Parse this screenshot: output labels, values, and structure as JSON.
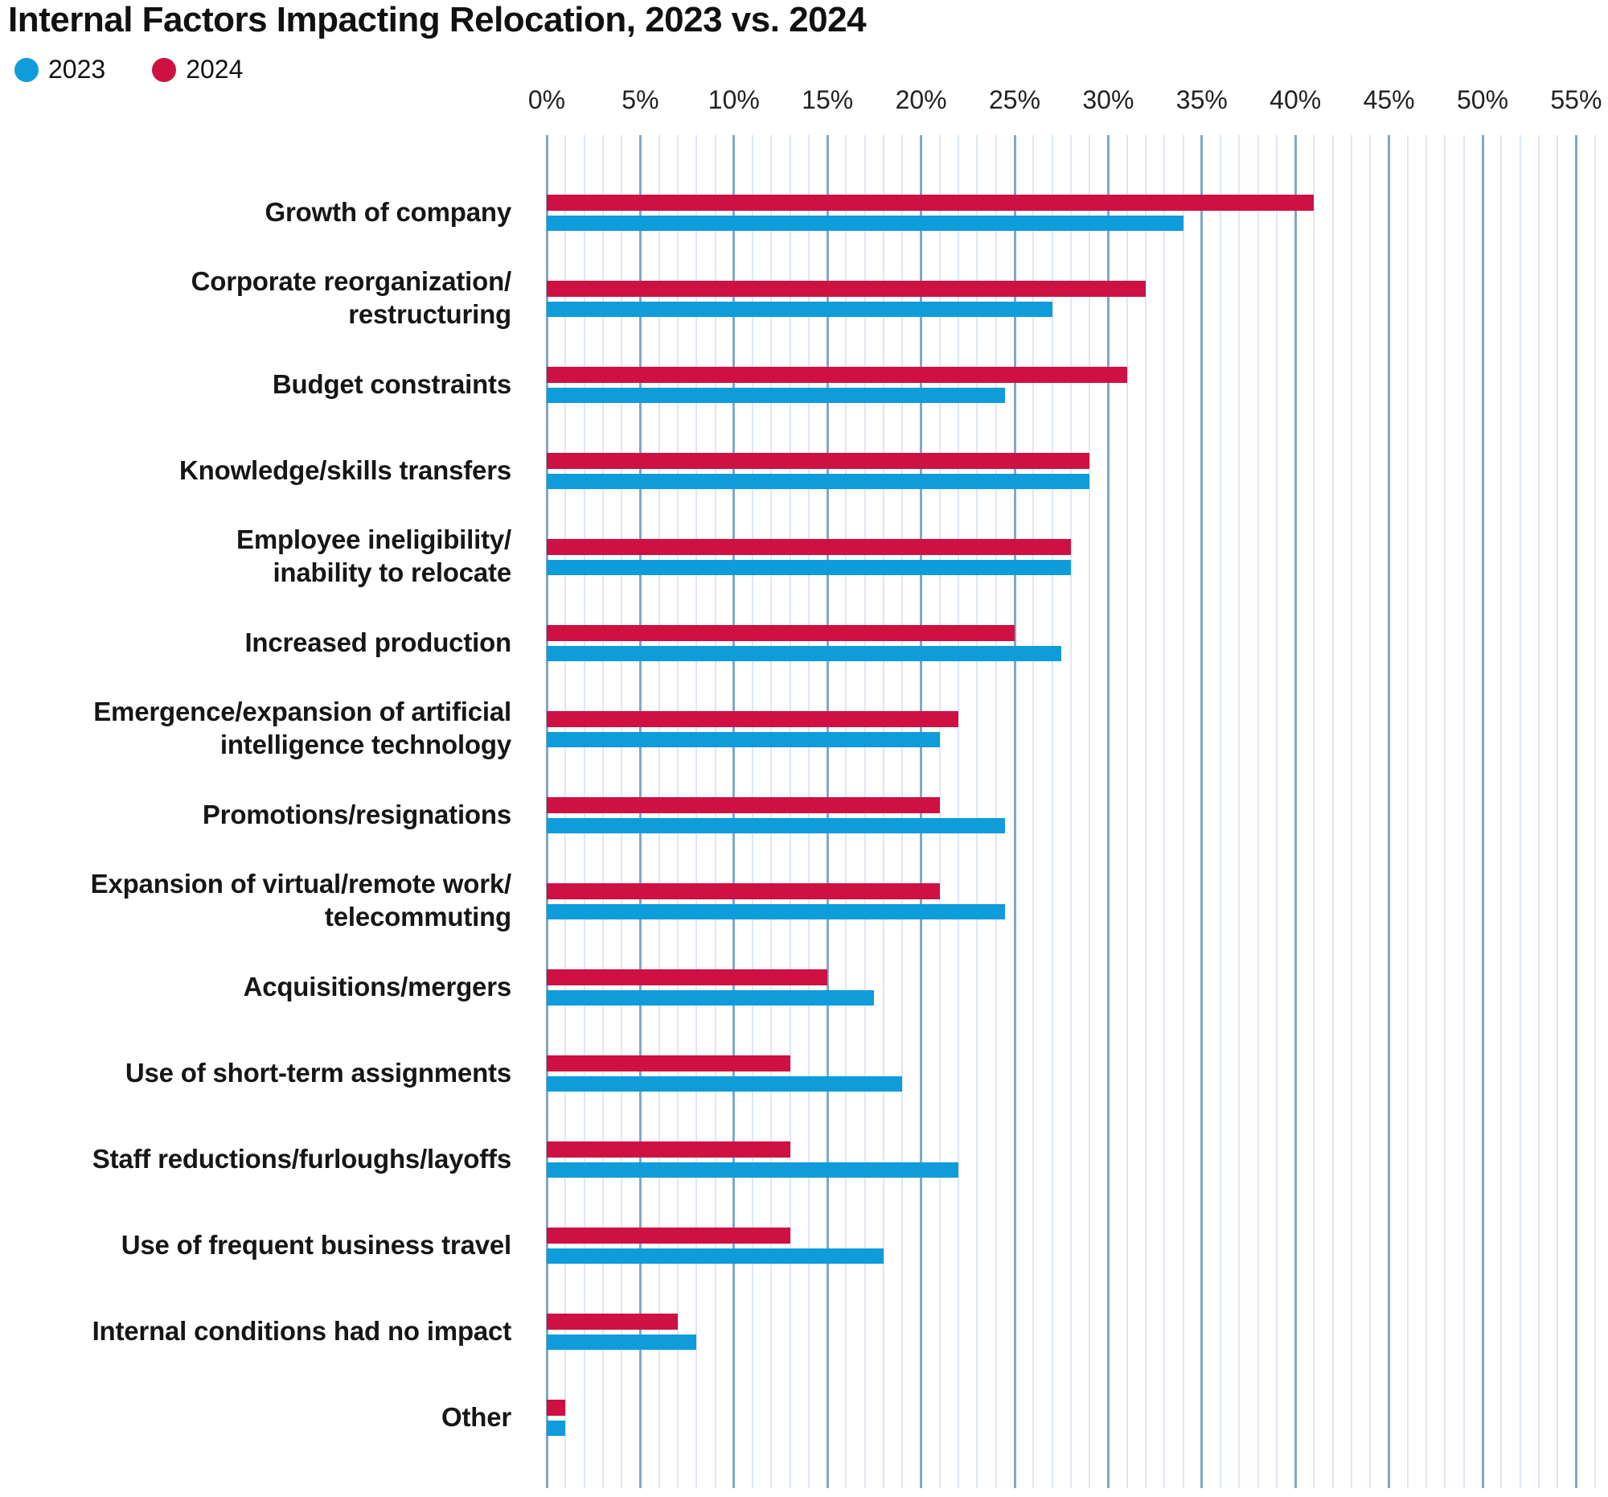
{
  "title": "Internal Factors Impacting Relocation, 2023 vs. 2024",
  "legend": {
    "position": "top-left",
    "items": [
      {
        "label": "2023",
        "color": "#0f9cda"
      },
      {
        "label": "2024",
        "color": "#ce1142"
      }
    ]
  },
  "colors": {
    "series_2023_blue": "#0f9cda",
    "series_2024_red": "#ce1142",
    "grid_minor": "#dde7f3",
    "grid_major": "#7fa8c9",
    "text": "#161616",
    "background": "#ffffff"
  },
  "chart_data": {
    "type": "bar",
    "orientation": "horizontal",
    "title": "Internal Factors Impacting Relocation, 2023 vs. 2024",
    "unit": "%",
    "xlabel": "",
    "ylabel": "",
    "xlim": [
      0,
      55
    ],
    "tick_step": 5,
    "x_tick_labels": [
      "0%",
      "5%",
      "10%",
      "15%",
      "20%",
      "25%",
      "30%",
      "35%",
      "40%",
      "45%",
      "50%",
      "55%"
    ],
    "grid": "vertical gridlines: minor every 1%, major every 5%",
    "legend_position": "top-left",
    "row_order_top_to_bottom_within_group": [
      "2024",
      "2023"
    ],
    "categories": [
      "Growth of company",
      "Corporate reorganization/restructuring",
      "Budget constraints",
      "Knowledge/skills transfers",
      "Employee ineligibility/inability to relocate",
      "Increased production",
      "Emergence/expansion of artificial intelligence technology",
      "Promotions/resignations",
      "Expansion of virtual/remote work/telecommuting",
      "Acquisitions/mergers",
      "Use of short-term assignments",
      "Staff reductions/furloughs/layoffs",
      "Use of frequent business travel",
      "Internal conditions had no impact",
      "Other"
    ],
    "category_label_lines": [
      [
        "Growth of company"
      ],
      [
        "Corporate reorganization/",
        "restructuring"
      ],
      [
        "Budget constraints"
      ],
      [
        "Knowledge/skills transfers"
      ],
      [
        "Employee ineligibility/",
        "inability to relocate"
      ],
      [
        "Increased production"
      ],
      [
        "Emergence/expansion of artificial",
        "intelligence technology"
      ],
      [
        "Promotions/resignations"
      ],
      [
        "Expansion of virtual/remote work/",
        "telecommuting"
      ],
      [
        "Acquisitions/mergers"
      ],
      [
        "Use of short-term assignments"
      ],
      [
        "Staff reductions/furloughs/layoffs"
      ],
      [
        "Use of frequent business travel"
      ],
      [
        "Internal conditions had no impact"
      ],
      [
        "Other"
      ]
    ],
    "series": [
      {
        "name": "2023",
        "color": "#0f9cda",
        "values": [
          34,
          27,
          24.5,
          29,
          28,
          27.5,
          21,
          24.5,
          24.5,
          17.5,
          19,
          22,
          18,
          8,
          1
        ]
      },
      {
        "name": "2024",
        "color": "#ce1142",
        "values": [
          41,
          32,
          31,
          29,
          28,
          25,
          22,
          21,
          21,
          15,
          13,
          13,
          13,
          7,
          1
        ]
      }
    ]
  }
}
